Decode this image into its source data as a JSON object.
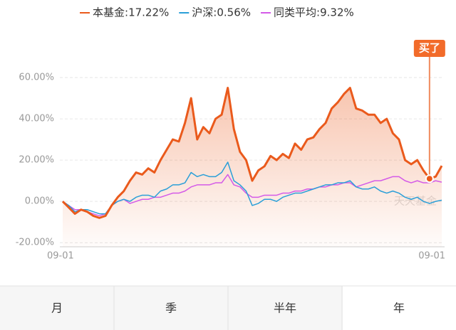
{
  "chart_data": {
    "type": "line",
    "categories": [
      "09-01",
      null,
      null,
      null,
      null,
      null,
      null,
      null,
      null,
      null,
      null,
      null,
      null,
      null,
      null,
      null,
      null,
      null,
      null,
      null,
      null,
      null,
      null,
      null,
      null,
      null,
      null,
      null,
      null,
      null,
      null,
      null,
      null,
      null,
      null,
      null,
      null,
      null,
      null,
      null,
      null,
      null,
      null,
      null,
      null,
      null,
      null,
      null,
      null,
      null,
      null,
      null,
      null,
      null,
      null,
      null,
      null,
      null,
      null,
      null,
      null,
      null,
      "09-01"
    ],
    "series": [
      {
        "name": "本基金",
        "color": "#ea5a1c",
        "latest": 17.22,
        "latest_label": "17.22%",
        "values": [
          0,
          -3,
          -6,
          -4,
          -5,
          -7,
          -8,
          -7,
          -2,
          2,
          5,
          10,
          14,
          13,
          16,
          14,
          20,
          25,
          30,
          29,
          38,
          50,
          30,
          36,
          33,
          40,
          42,
          55,
          35,
          24,
          20,
          10,
          15,
          17,
          22,
          20,
          23,
          21,
          28,
          25,
          30,
          31,
          35,
          38,
          45,
          48,
          52,
          55,
          45,
          44,
          42,
          42,
          38,
          40,
          33,
          30,
          20,
          18,
          20,
          15,
          11,
          12,
          17.22
        ]
      },
      {
        "name": "沪深",
        "color": "#2a9fd8",
        "latest": 0.56,
        "latest_label": "0.56%",
        "values": [
          0,
          -2,
          -5,
          -4,
          -4,
          -5,
          -6,
          -6,
          -2,
          0,
          1,
          0,
          2,
          3,
          3,
          2,
          5,
          6,
          8,
          8,
          9,
          14,
          12,
          13,
          12,
          12,
          14,
          19,
          10,
          8,
          5,
          -2,
          -1,
          1,
          1,
          0,
          2,
          3,
          4,
          4,
          5,
          6,
          7,
          8,
          8,
          9,
          9,
          10,
          7,
          6,
          6,
          7,
          5,
          4,
          5,
          4,
          2,
          1,
          2,
          0,
          -1,
          0,
          0.56
        ]
      },
      {
        "name": "同类平均",
        "color": "#d45ae8",
        "latest": 9.32,
        "latest_label": "9.32%",
        "values": [
          0,
          -2,
          -4,
          -4,
          -5,
          -6,
          -7,
          -6,
          -2,
          0,
          1,
          -1,
          0,
          1,
          1,
          2,
          2,
          3,
          4,
          4,
          5,
          7,
          8,
          8,
          8,
          9,
          9,
          13,
          8,
          7,
          4,
          2,
          2,
          3,
          3,
          3,
          4,
          4,
          5,
          5,
          6,
          6,
          7,
          7,
          8,
          8,
          9,
          9,
          7,
          8,
          9,
          10,
          10,
          11,
          12,
          12,
          10,
          9,
          10,
          9,
          9,
          10,
          9.32
        ]
      }
    ],
    "ylim": [
      -22,
      70
    ],
    "yticks": [
      {
        "value": -20,
        "label": "-20.00%"
      },
      {
        "value": 0,
        "label": "0.00%"
      },
      {
        "value": 20,
        "label": "20.00%"
      },
      {
        "value": 40,
        "label": "40.00%"
      },
      {
        "value": 60,
        "label": "60.00%"
      }
    ],
    "grid": true,
    "annotation": "买了",
    "watermark": "天天基金"
  },
  "tabs": [
    "月",
    "季",
    "半年",
    "年"
  ]
}
